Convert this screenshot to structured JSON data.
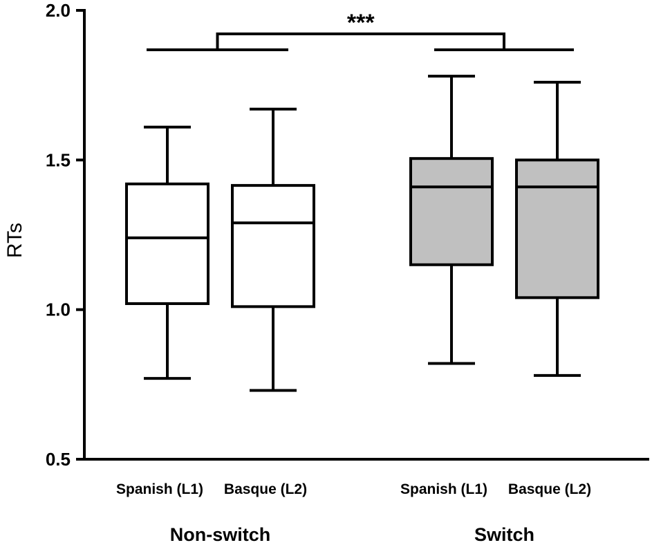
{
  "chart_data": {
    "type": "box",
    "ylabel": "RTs",
    "ylim": [
      0.5,
      2.0
    ],
    "yticks": [
      "0.5",
      "1.0",
      "1.5",
      "2.0"
    ],
    "groups": [
      {
        "label": "Non-switch",
        "boxes": [
          {
            "label": "Spanish (L1)",
            "min": 0.77,
            "q1": 1.02,
            "median": 1.24,
            "q3": 1.42,
            "max": 1.61
          },
          {
            "label": "Basque (L2)",
            "min": 0.73,
            "q1": 1.01,
            "median": 1.29,
            "q3": 1.415,
            "max": 1.67
          }
        ]
      },
      {
        "label": "Switch",
        "boxes": [
          {
            "label": "Spanish (L1)",
            "min": 0.82,
            "q1": 1.15,
            "median": 1.41,
            "q3": 1.505,
            "max": 1.78
          },
          {
            "label": "Basque (L2)",
            "min": 0.78,
            "q1": 1.04,
            "median": 1.41,
            "q3": 1.5,
            "max": 1.76
          }
        ]
      }
    ],
    "significance": {
      "label": "***",
      "between": [
        "Non-switch",
        "Switch"
      ]
    },
    "colors": {
      "Non-switch": "#ffffff",
      "Switch": "#c0c0c0",
      "stroke": "#000000"
    },
    "grid": false
  }
}
